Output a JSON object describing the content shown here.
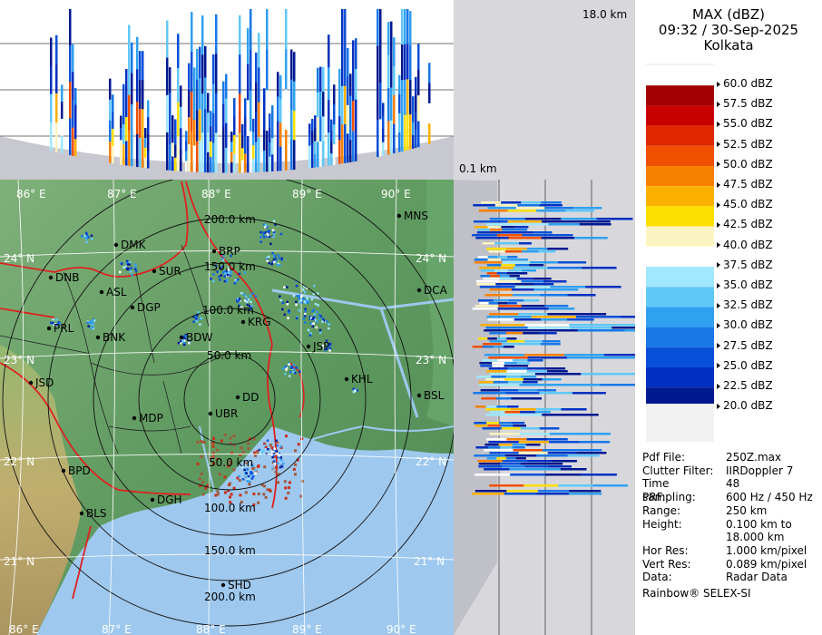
{
  "header": {
    "product": "MAX (dBZ)",
    "datetime": "09:32 / 30-Sep-2025",
    "station": "Kolkata"
  },
  "profile_labels": {
    "top_height": "18.0 km",
    "bottom_height": "0.1 km"
  },
  "legend": {
    "unit": "dBZ",
    "levels": [
      {
        "label": "60.0 dBZ",
        "color": "#e8e8e8"
      },
      {
        "label": "57.5 dBZ",
        "color": "#a00000"
      },
      {
        "label": "55.0 dBZ",
        "color": "#c80000"
      },
      {
        "label": "52.5 dBZ",
        "color": "#e02800"
      },
      {
        "label": "50.0 dBZ",
        "color": "#f05000"
      },
      {
        "label": "47.5 dBZ",
        "color": "#f88000"
      },
      {
        "label": "45.0 dBZ",
        "color": "#fcb000"
      },
      {
        "label": "42.5 dBZ",
        "color": "#fce000"
      },
      {
        "label": "40.0 dBZ",
        "color": "#fcf4c0"
      },
      {
        "label": "37.5 dBZ",
        "color": "#ffffff"
      },
      {
        "label": "35.0 dBZ",
        "color": "#a0e8ff"
      },
      {
        "label": "32.5 dBZ",
        "color": "#60c8f8"
      },
      {
        "label": "30.0 dBZ",
        "color": "#30a0f0"
      },
      {
        "label": "27.5 dBZ",
        "color": "#1878e8"
      },
      {
        "label": "25.0 dBZ",
        "color": "#0850d8"
      },
      {
        "label": "22.5 dBZ",
        "color": "#0030c0"
      },
      {
        "label": "20.0 dBZ",
        "color": "#001890"
      }
    ]
  },
  "info": [
    {
      "key": "Pdf File:",
      "value": "250Z.max"
    },
    {
      "key": "Clutter Filter:",
      "value": "IIRDoppler 7"
    },
    {
      "key": "Time sampling:",
      "value": "48"
    },
    {
      "key": "PRF:",
      "value": "600 Hz / 450 Hz"
    },
    {
      "key": "Range:",
      "value": "250 km"
    },
    {
      "key": "Height:",
      "value": "0.100 km to"
    },
    {
      "key": "",
      "value": "18.000 km"
    },
    {
      "key": "Hor Res:",
      "value": "1.000 km/pixel"
    },
    {
      "key": "Vert Res:",
      "value": "0.089 km/pixel"
    },
    {
      "key": "Data:",
      "value": "Radar Data"
    }
  ],
  "footer": "Rainbow® SELEX-SI",
  "map": {
    "lon_labels": [
      "86° E",
      "87° E",
      "88° E",
      "89° E",
      "90° E"
    ],
    "lat_labels": [
      "24° N",
      "23° N",
      "22° N",
      "21° N"
    ],
    "range_labels": [
      "50.0 km",
      "100.0 km",
      "150.0 km",
      "200.0 km"
    ],
    "cities": [
      {
        "name": "MNS"
      },
      {
        "name": "DMK"
      },
      {
        "name": "BRP"
      },
      {
        "name": "DNB"
      },
      {
        "name": "SUR"
      },
      {
        "name": "ASL"
      },
      {
        "name": "DGP"
      },
      {
        "name": "DCA"
      },
      {
        "name": "KRG"
      },
      {
        "name": "PRL"
      },
      {
        "name": "BNK"
      },
      {
        "name": "BDW"
      },
      {
        "name": "JSP"
      },
      {
        "name": "KHL"
      },
      {
        "name": "JSD"
      },
      {
        "name": "BSL"
      },
      {
        "name": "MDP"
      },
      {
        "name": "DD"
      },
      {
        "name": "UBR"
      },
      {
        "name": "BPD"
      },
      {
        "name": "DGH"
      },
      {
        "name": "BLS"
      },
      {
        "name": "SHD"
      }
    ],
    "colors": {
      "land": "#6aa06a",
      "sea": "#9ec8ee",
      "boundary": "#e02020",
      "district": "#222222"
    }
  }
}
